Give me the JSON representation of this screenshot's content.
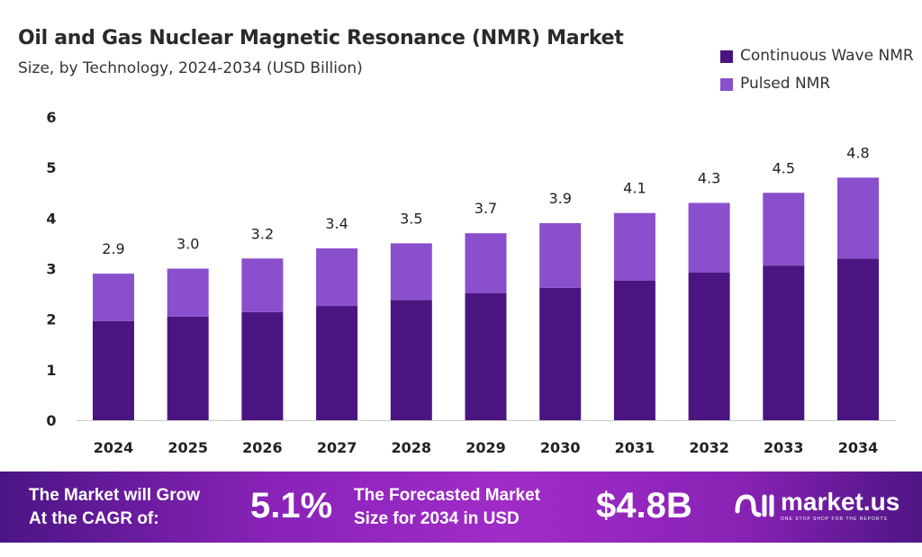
{
  "colors": {
    "cw": "#4a1580",
    "pulsed": "#8a4fcc"
  },
  "chart_data": {
    "type": "bar",
    "stacked": true,
    "title": "Oil and Gas Nuclear Magnetic Resonance (NMR) Market",
    "subtitle": "Size, by Technology, 2024-2034 (USD Billion)",
    "categories": [
      "2024",
      "2025",
      "2026",
      "2027",
      "2028",
      "2029",
      "2030",
      "2031",
      "2032",
      "2033",
      "2034"
    ],
    "series": [
      {
        "name": "Continuous Wave NMR",
        "values": [
          1.96,
          2.05,
          2.14,
          2.26,
          2.38,
          2.51,
          2.62,
          2.76,
          2.92,
          3.06,
          3.2
        ]
      },
      {
        "name": "Pulsed NMR",
        "values": [
          0.94,
          0.95,
          1.06,
          1.14,
          1.12,
          1.19,
          1.28,
          1.34,
          1.38,
          1.44,
          1.6
        ]
      }
    ],
    "totals": [
      "2.9",
      "3.0",
      "3.2",
      "3.4",
      "3.5",
      "3.7",
      "3.9",
      "4.1",
      "4.3",
      "4.5",
      "4.8"
    ],
    "yticks": [
      "0",
      "1",
      "2",
      "3",
      "4",
      "5",
      "6"
    ],
    "ylim": [
      0,
      6
    ],
    "legend_position": "top-right",
    "grid": false
  },
  "footer": {
    "cagr_label_1": "The Market will Grow",
    "cagr_label_2": "At the CAGR of:",
    "cagr_value": "5.1%",
    "forecast_label_1": "The Forecasted Market",
    "forecast_label_2": "Size for 2034 in USD",
    "forecast_value": "$4.8B",
    "logo_name": "market.us",
    "logo_tagline": "ONE STOP SHOP FOR THE REPORTS"
  }
}
